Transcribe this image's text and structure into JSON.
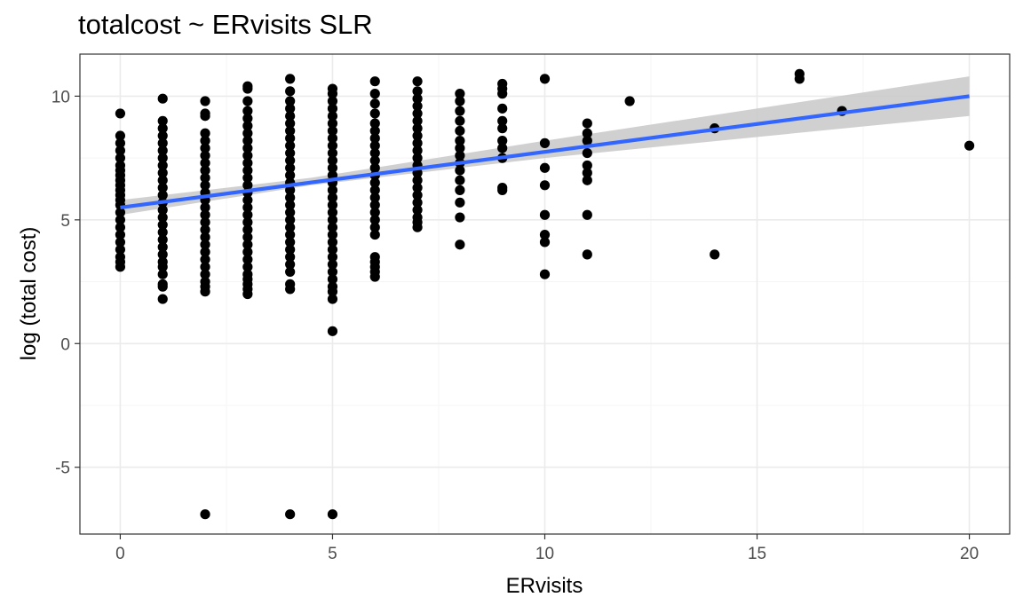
{
  "chart_data": {
    "type": "scatter",
    "title": "totalcost ~ ERvisits SLR",
    "xlabel": "ERvisits",
    "ylabel": "log (total cost)",
    "xlim": [
      -0.95,
      20.95
    ],
    "ylim": [
      -7.7,
      11.7
    ],
    "x_ticks": [
      0,
      5,
      10,
      15,
      20
    ],
    "y_ticks": [
      -5,
      0,
      5,
      10
    ],
    "grid": true,
    "theme": "bw",
    "colors": {
      "points": "#000000",
      "fit_line": "#3366FF",
      "confidence_band": "#C8C8C8",
      "grid_major": "#EBEBEB",
      "grid_minor": "#F5F5F5",
      "panel_border": "#333333"
    },
    "points": [
      [
        0,
        9.3
      ],
      [
        0,
        8.4
      ],
      [
        0,
        8.1
      ],
      [
        0,
        7.8
      ],
      [
        0,
        7.5
      ],
      [
        0,
        7.2
      ],
      [
        0,
        7.0
      ],
      [
        0,
        6.8
      ],
      [
        0,
        6.6
      ],
      [
        0,
        6.4
      ],
      [
        0,
        6.2
      ],
      [
        0,
        6.0
      ],
      [
        0,
        5.8
      ],
      [
        0,
        5.6
      ],
      [
        0,
        5.3
      ],
      [
        0,
        5.0
      ],
      [
        0,
        4.7
      ],
      [
        0,
        4.4
      ],
      [
        0,
        4.1
      ],
      [
        0,
        3.8
      ],
      [
        0,
        3.5
      ],
      [
        0,
        3.3
      ],
      [
        0,
        3.1
      ],
      [
        1,
        9.9
      ],
      [
        1,
        9.0
      ],
      [
        1,
        8.7
      ],
      [
        1,
        8.4
      ],
      [
        1,
        8.1
      ],
      [
        1,
        7.8
      ],
      [
        1,
        7.5
      ],
      [
        1,
        7.2
      ],
      [
        1,
        6.9
      ],
      [
        1,
        6.6
      ],
      [
        1,
        6.3
      ],
      [
        1,
        6.0
      ],
      [
        1,
        5.7
      ],
      [
        1,
        5.4
      ],
      [
        1,
        5.1
      ],
      [
        1,
        4.8
      ],
      [
        1,
        4.5
      ],
      [
        1,
        4.2
      ],
      [
        1,
        3.9
      ],
      [
        1,
        3.6
      ],
      [
        1,
        3.3
      ],
      [
        1,
        3.1
      ],
      [
        1,
        2.8
      ],
      [
        1,
        2.4
      ],
      [
        1,
        2.3
      ],
      [
        1,
        1.8
      ],
      [
        2,
        9.8
      ],
      [
        2,
        9.3
      ],
      [
        2,
        9.2
      ],
      [
        2,
        8.5
      ],
      [
        2,
        8.2
      ],
      [
        2,
        7.9
      ],
      [
        2,
        7.6
      ],
      [
        2,
        7.3
      ],
      [
        2,
        7.0
      ],
      [
        2,
        6.7
      ],
      [
        2,
        6.4
      ],
      [
        2,
        6.1
      ],
      [
        2,
        5.8
      ],
      [
        2,
        5.5
      ],
      [
        2,
        5.2
      ],
      [
        2,
        4.9
      ],
      [
        2,
        4.6
      ],
      [
        2,
        4.3
      ],
      [
        2,
        4.0
      ],
      [
        2,
        3.7
      ],
      [
        2,
        3.4
      ],
      [
        2,
        3.1
      ],
      [
        2,
        2.8
      ],
      [
        2,
        2.5
      ],
      [
        2,
        2.3
      ],
      [
        2,
        2.1
      ],
      [
        2,
        -6.9
      ],
      [
        3,
        10.4
      ],
      [
        3,
        10.3
      ],
      [
        3,
        9.8
      ],
      [
        3,
        9.4
      ],
      [
        3,
        9.1
      ],
      [
        3,
        8.8
      ],
      [
        3,
        8.5
      ],
      [
        3,
        8.2
      ],
      [
        3,
        7.9
      ],
      [
        3,
        7.6
      ],
      [
        3,
        7.3
      ],
      [
        3,
        7.0
      ],
      [
        3,
        6.7
      ],
      [
        3,
        6.4
      ],
      [
        3,
        6.1
      ],
      [
        3,
        5.8
      ],
      [
        3,
        5.5
      ],
      [
        3,
        5.2
      ],
      [
        3,
        4.9
      ],
      [
        3,
        4.6
      ],
      [
        3,
        4.3
      ],
      [
        3,
        4.0
      ],
      [
        3,
        3.7
      ],
      [
        3,
        3.4
      ],
      [
        3,
        3.1
      ],
      [
        3,
        2.8
      ],
      [
        3,
        2.6
      ],
      [
        3,
        2.4
      ],
      [
        3,
        2.2
      ],
      [
        3,
        2.0
      ],
      [
        4,
        10.7
      ],
      [
        4,
        10.2
      ],
      [
        4,
        9.8
      ],
      [
        4,
        9.5
      ],
      [
        4,
        9.2
      ],
      [
        4,
        8.9
      ],
      [
        4,
        8.6
      ],
      [
        4,
        8.3
      ],
      [
        4,
        8.0
      ],
      [
        4,
        7.7
      ],
      [
        4,
        7.4
      ],
      [
        4,
        7.1
      ],
      [
        4,
        6.8
      ],
      [
        4,
        6.5
      ],
      [
        4,
        6.2
      ],
      [
        4,
        5.9
      ],
      [
        4,
        5.6
      ],
      [
        4,
        5.3
      ],
      [
        4,
        5.0
      ],
      [
        4,
        4.7
      ],
      [
        4,
        4.4
      ],
      [
        4,
        4.1
      ],
      [
        4,
        3.8
      ],
      [
        4,
        3.5
      ],
      [
        4,
        3.2
      ],
      [
        4,
        2.9
      ],
      [
        4,
        2.4
      ],
      [
        4,
        2.2
      ],
      [
        4,
        -6.9
      ],
      [
        5,
        10.3
      ],
      [
        5,
        10.1
      ],
      [
        5,
        9.8
      ],
      [
        5,
        9.5
      ],
      [
        5,
        9.2
      ],
      [
        5,
        8.9
      ],
      [
        5,
        8.6
      ],
      [
        5,
        8.3
      ],
      [
        5,
        8.0
      ],
      [
        5,
        7.7
      ],
      [
        5,
        7.4
      ],
      [
        5,
        7.1
      ],
      [
        5,
        6.8
      ],
      [
        5,
        6.5
      ],
      [
        5,
        6.2
      ],
      [
        5,
        5.9
      ],
      [
        5,
        5.6
      ],
      [
        5,
        5.3
      ],
      [
        5,
        5.0
      ],
      [
        5,
        4.7
      ],
      [
        5,
        4.4
      ],
      [
        5,
        4.1
      ],
      [
        5,
        3.8
      ],
      [
        5,
        3.5
      ],
      [
        5,
        3.2
      ],
      [
        5,
        2.9
      ],
      [
        5,
        2.6
      ],
      [
        5,
        2.3
      ],
      [
        5,
        2.1
      ],
      [
        5,
        1.8
      ],
      [
        5,
        0.5
      ],
      [
        5,
        -6.9
      ],
      [
        6,
        10.6
      ],
      [
        6,
        10.1
      ],
      [
        6,
        9.7
      ],
      [
        6,
        9.3
      ],
      [
        6,
        8.9
      ],
      [
        6,
        8.6
      ],
      [
        6,
        8.3
      ],
      [
        6,
        8.0
      ],
      [
        6,
        7.7
      ],
      [
        6,
        7.4
      ],
      [
        6,
        7.1
      ],
      [
        6,
        6.8
      ],
      [
        6,
        6.5
      ],
      [
        6,
        6.2
      ],
      [
        6,
        5.9
      ],
      [
        6,
        5.6
      ],
      [
        6,
        5.3
      ],
      [
        6,
        5.0
      ],
      [
        6,
        4.7
      ],
      [
        6,
        4.4
      ],
      [
        6,
        3.5
      ],
      [
        6,
        3.3
      ],
      [
        6,
        3.1
      ],
      [
        6,
        2.9
      ],
      [
        6,
        2.7
      ],
      [
        7,
        10.6
      ],
      [
        7,
        10.2
      ],
      [
        7,
        9.9
      ],
      [
        7,
        9.6
      ],
      [
        7,
        9.3
      ],
      [
        7,
        9.0
      ],
      [
        7,
        8.7
      ],
      [
        7,
        8.4
      ],
      [
        7,
        8.1
      ],
      [
        7,
        7.8
      ],
      [
        7,
        7.5
      ],
      [
        7,
        7.2
      ],
      [
        7,
        6.9
      ],
      [
        7,
        6.6
      ],
      [
        7,
        6.3
      ],
      [
        7,
        6.0
      ],
      [
        7,
        5.7
      ],
      [
        7,
        5.4
      ],
      [
        7,
        5.1
      ],
      [
        7,
        4.9
      ],
      [
        7,
        4.7
      ],
      [
        8,
        10.1
      ],
      [
        8,
        9.8
      ],
      [
        8,
        9.4
      ],
      [
        8,
        9.0
      ],
      [
        8,
        8.6
      ],
      [
        8,
        8.2
      ],
      [
        8,
        7.9
      ],
      [
        8,
        7.6
      ],
      [
        8,
        7.3
      ],
      [
        8,
        7.0
      ],
      [
        8,
        6.6
      ],
      [
        8,
        6.2
      ],
      [
        8,
        5.7
      ],
      [
        8,
        5.1
      ],
      [
        8,
        4.0
      ],
      [
        9,
        10.5
      ],
      [
        9,
        10.3
      ],
      [
        9,
        10.1
      ],
      [
        9,
        9.5
      ],
      [
        9,
        9.0
      ],
      [
        9,
        8.7
      ],
      [
        9,
        8.2
      ],
      [
        9,
        7.9
      ],
      [
        9,
        7.5
      ],
      [
        9,
        6.3
      ],
      [
        9,
        6.2
      ],
      [
        10,
        10.7
      ],
      [
        10,
        8.1
      ],
      [
        10,
        7.1
      ],
      [
        10,
        6.4
      ],
      [
        10,
        5.2
      ],
      [
        10,
        4.4
      ],
      [
        10,
        4.1
      ],
      [
        10,
        2.8
      ],
      [
        11,
        8.9
      ],
      [
        11,
        8.5
      ],
      [
        11,
        8.2
      ],
      [
        11,
        7.7
      ],
      [
        11,
        7.2
      ],
      [
        11,
        6.9
      ],
      [
        11,
        6.6
      ],
      [
        11,
        5.2
      ],
      [
        11,
        3.6
      ],
      [
        12,
        9.8
      ],
      [
        14,
        8.7
      ],
      [
        14,
        3.6
      ],
      [
        16,
        10.9
      ],
      [
        16,
        10.7
      ],
      [
        17,
        9.4
      ],
      [
        20,
        8.0
      ]
    ],
    "fit": {
      "intercept": 5.5,
      "slope": 0.225
    },
    "band": [
      {
        "x": 0,
        "lower": 5.2,
        "upper": 5.8
      },
      {
        "x": 4.5,
        "lower": 6.4,
        "upper": 6.7
      },
      {
        "x": 10,
        "lower": 7.5,
        "upper": 8.2
      },
      {
        "x": 20,
        "lower": 9.2,
        "upper": 10.8
      }
    ]
  }
}
